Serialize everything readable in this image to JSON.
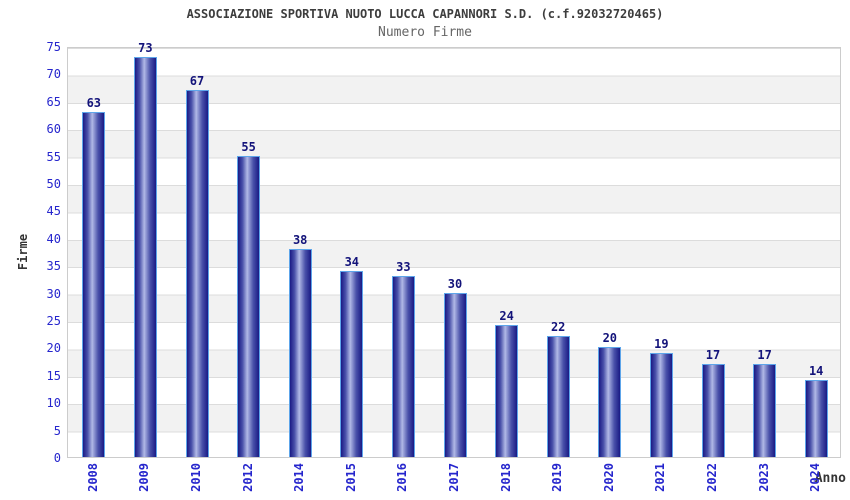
{
  "header": {
    "title": "ASSOCIAZIONE SPORTIVA NUOTO LUCCA CAPANNORI S.D. (c.f.92032720465)",
    "subtitle": "Numero Firme"
  },
  "chart_data": {
    "type": "bar",
    "title": "ASSOCIAZIONE SPORTIVA NUOTO LUCCA CAPANNORI S.D. (c.f.92032720465)",
    "subtitle": "Numero Firme",
    "categories": [
      "2008",
      "2009",
      "2010",
      "2012",
      "2014",
      "2015",
      "2016",
      "2017",
      "2018",
      "2019",
      "2020",
      "2021",
      "2022",
      "2023",
      "2024"
    ],
    "values": [
      63,
      73,
      67,
      55,
      38,
      34,
      33,
      30,
      24,
      22,
      20,
      19,
      17,
      17,
      14
    ],
    "xlabel": "Anno",
    "ylabel": "Firme",
    "ylim": [
      0,
      75
    ],
    "ytick_step": 5,
    "yticks": [
      0,
      5,
      10,
      15,
      20,
      25,
      30,
      35,
      40,
      45,
      50,
      55,
      60,
      65,
      70,
      75
    ],
    "grid": "horizontal-bands-every-5",
    "legend": "none",
    "bar_labels_shown": true
  },
  "colors": {
    "bar_edge": "#1a1a85",
    "bar_mid": "#4a52aa",
    "bar_center": "#b0b8e6",
    "bar_border": "#5da5ea",
    "value_label": "#13137a",
    "tick_label": "#2626cd",
    "axis_title": "#333333",
    "title": "#3d3d3d",
    "subtitle": "#666666",
    "band": "#f2f2f2",
    "gridline": "#dcdcdc",
    "plot_border": "#cccccc"
  }
}
